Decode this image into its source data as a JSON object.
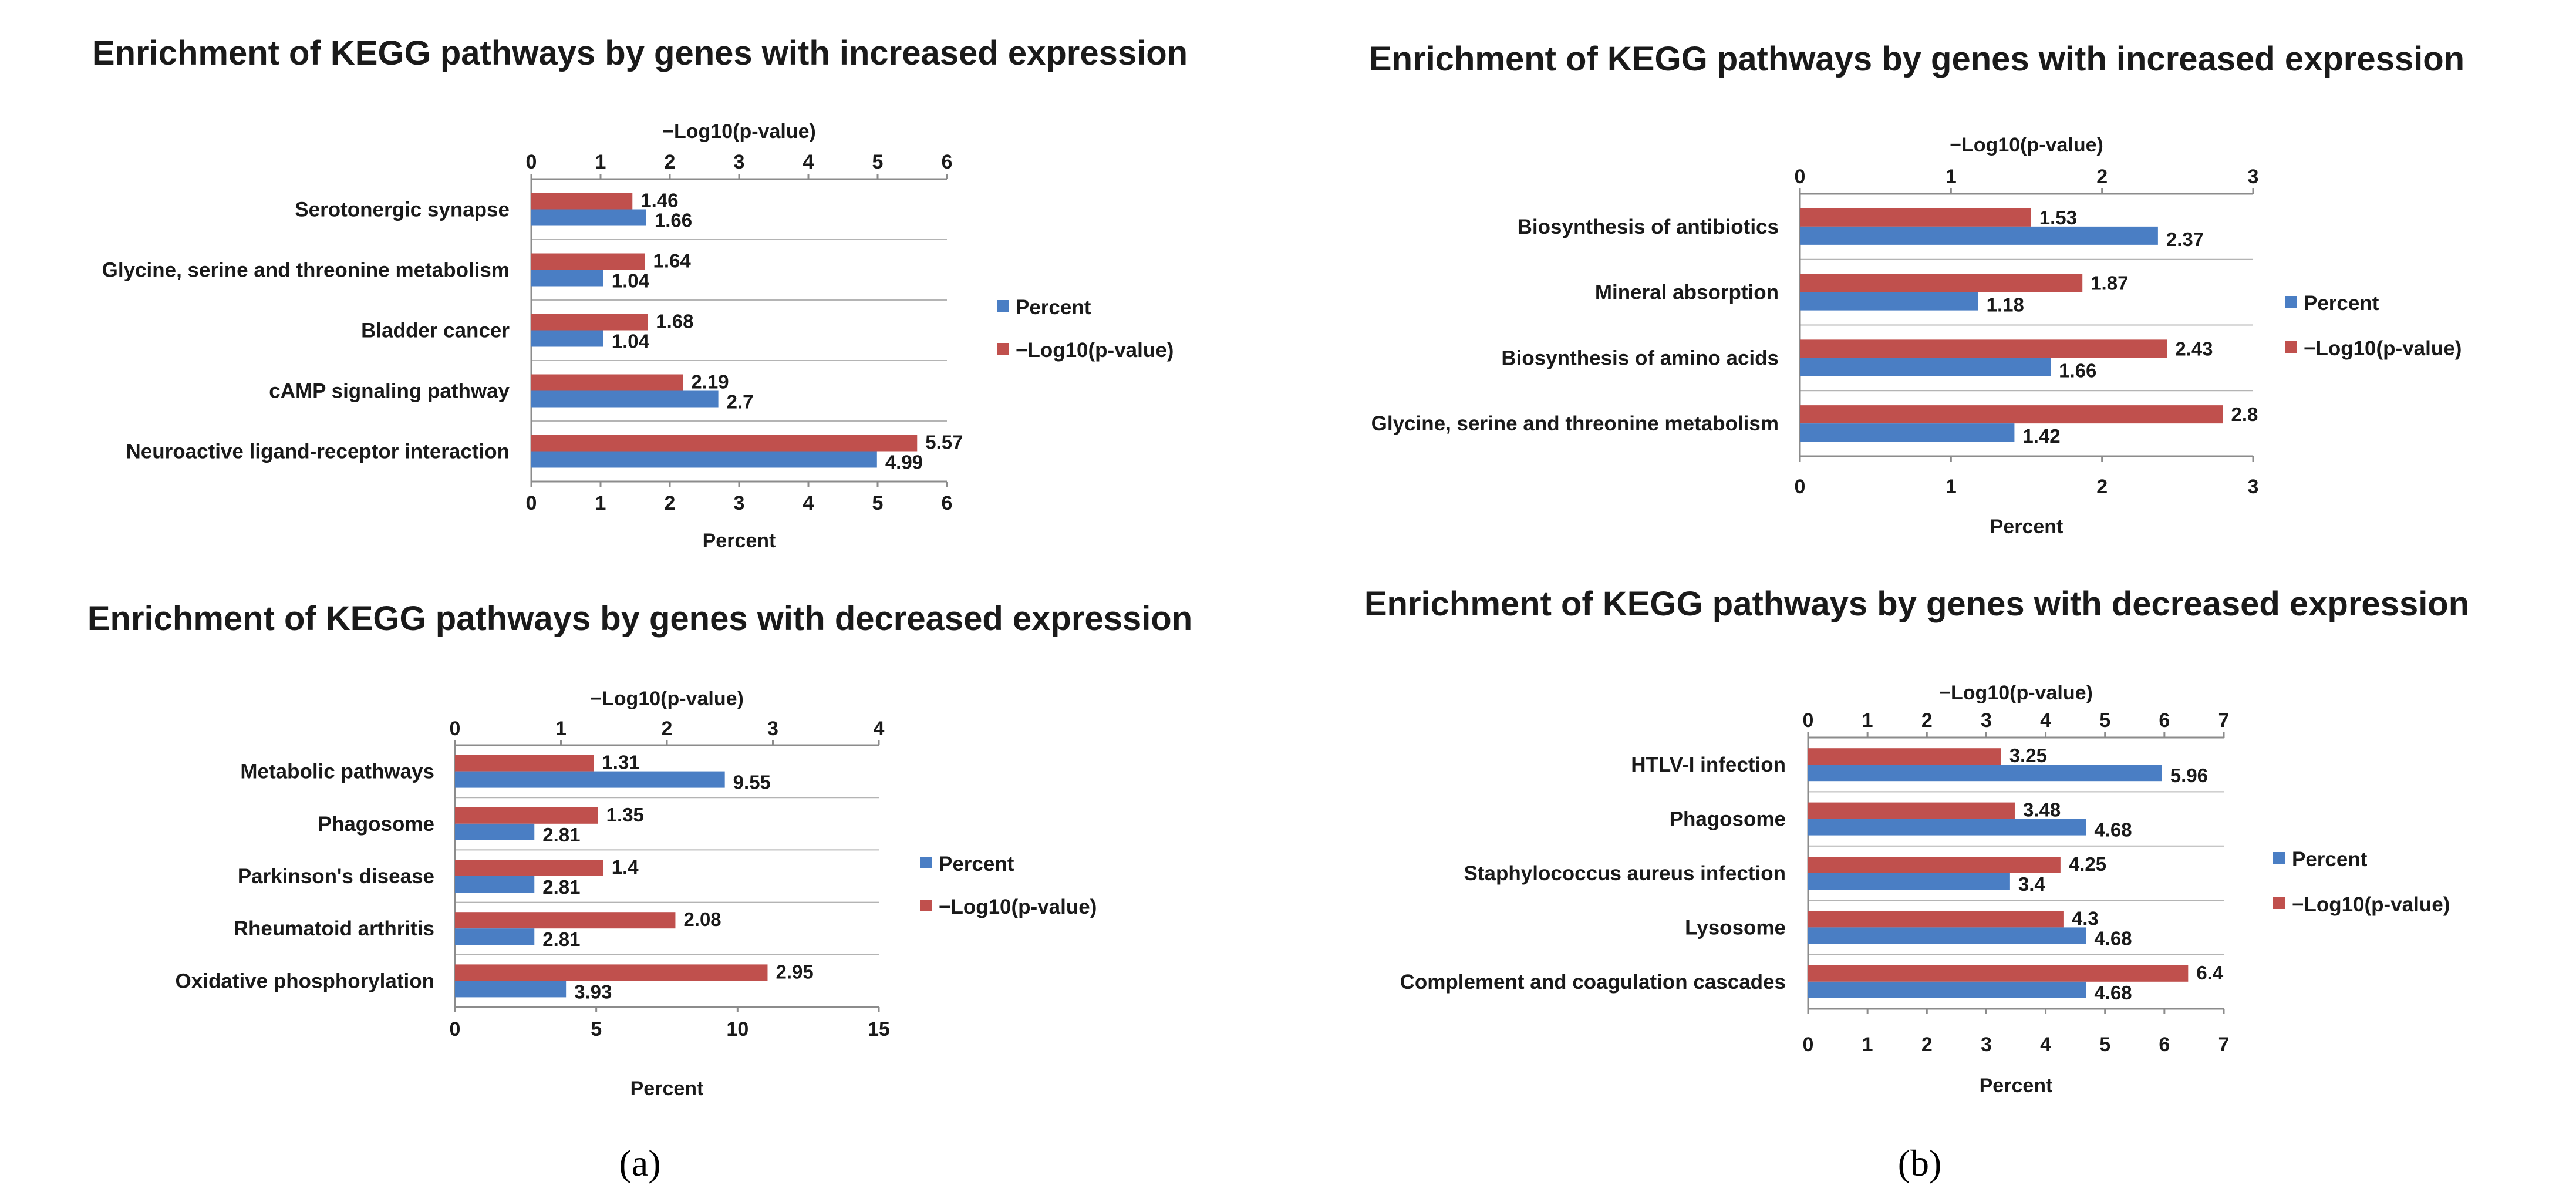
{
  "colors": {
    "percent": "#4a7ec4",
    "log": "#c0504d",
    "axis": "#8c8c8c",
    "grid": "#b4b4b4"
  },
  "panel_labels": [
    "(a)",
    "(b)"
  ],
  "chart_data": [
    {
      "type": "bar",
      "title": "Enrichment of KEGG pathways by genes with increased expression",
      "panel": "(a)",
      "categories": [
        "Serotonergic synapse",
        "Glycine, serine and threonine metabolism",
        "Bladder cancer",
        "cAMP signaling pathway",
        "Neuroactive ligand-receptor interaction"
      ],
      "series": [
        {
          "name": "−Log10(p-value)",
          "axis": "top",
          "values": [
            1.46,
            1.64,
            1.68,
            2.19,
            5.57
          ]
        },
        {
          "name": "Percent",
          "axis": "bottom",
          "values": [
            1.66,
            1.04,
            1.04,
            2.7,
            4.99
          ]
        }
      ],
      "top_axis": {
        "label": "−Log10(p-value)",
        "range": [
          0,
          6
        ],
        "ticks": [
          0,
          1,
          2,
          3,
          4,
          5,
          6
        ]
      },
      "bottom_axis": {
        "label": "Percent",
        "range": [
          0,
          6
        ],
        "ticks": [
          0,
          1,
          2,
          3,
          4,
          5,
          6
        ]
      },
      "legend": [
        "Percent",
        "−Log10(p-value)"
      ],
      "legend_position": "right"
    },
    {
      "type": "bar",
      "title": "Enrichment of KEGG pathways by genes with decreased expression",
      "panel": "(a)",
      "categories": [
        "Metabolic pathways",
        "Phagosome",
        "Parkinson's disease",
        "Rheumatoid arthritis",
        "Oxidative phosphorylation"
      ],
      "series": [
        {
          "name": "−Log10(p-value)",
          "axis": "top",
          "values": [
            1.31,
            1.35,
            1.4,
            2.08,
            2.95
          ]
        },
        {
          "name": "Percent",
          "axis": "bottom",
          "values": [
            9.55,
            2.81,
            2.81,
            2.81,
            3.93
          ]
        }
      ],
      "top_axis": {
        "label": "−Log10(p-value)",
        "range": [
          0,
          4
        ],
        "ticks": [
          0,
          1,
          2,
          3,
          4
        ]
      },
      "bottom_axis": {
        "label": "Percent",
        "range": [
          0,
          15
        ],
        "ticks": [
          0,
          5,
          10,
          15
        ]
      },
      "legend": [
        "Percent",
        "−Log10(p-value)"
      ],
      "legend_position": "right"
    },
    {
      "type": "bar",
      "title": "Enrichment of KEGG pathways by genes with increased expression",
      "panel": "(b)",
      "categories": [
        "Biosynthesis of antibiotics",
        "Mineral absorption",
        "Biosynthesis of amino acids",
        "Glycine, serine and threonine metabolism"
      ],
      "series": [
        {
          "name": "−Log10(p-value)",
          "axis": "top",
          "values": [
            1.53,
            1.87,
            2.43,
            2.8
          ]
        },
        {
          "name": "Percent",
          "axis": "bottom",
          "values": [
            2.37,
            1.18,
            1.66,
            1.42
          ]
        }
      ],
      "top_axis": {
        "label": "−Log10(p-value)",
        "range": [
          0,
          3
        ],
        "ticks": [
          0,
          1,
          2,
          3
        ]
      },
      "bottom_axis": {
        "label": "Percent",
        "range": [
          0,
          3
        ],
        "ticks": [
          0,
          1,
          2,
          3
        ]
      },
      "legend": [
        "Percent",
        "−Log10(p-value)"
      ],
      "legend_position": "right"
    },
    {
      "type": "bar",
      "title": "Enrichment of KEGG pathways by genes with decreased expression",
      "panel": "(b)",
      "categories": [
        "HTLV-I infection",
        "Phagosome",
        "Staphylococcus aureus infection",
        "Lysosome",
        "Complement and coagulation cascades"
      ],
      "series": [
        {
          "name": "−Log10(p-value)",
          "axis": "top",
          "values": [
            3.25,
            3.48,
            4.25,
            4.3,
            6.4
          ]
        },
        {
          "name": "Percent",
          "axis": "bottom",
          "values": [
            5.96,
            4.68,
            3.4,
            4.68,
            4.68
          ]
        }
      ],
      "top_axis": {
        "label": "−Log10(p-value)",
        "range": [
          0,
          7
        ],
        "ticks": [
          0,
          1,
          2,
          3,
          4,
          5,
          6,
          7
        ]
      },
      "bottom_axis": {
        "label": "Percent",
        "range": [
          0,
          7
        ],
        "ticks": [
          0,
          1,
          2,
          3,
          4,
          5,
          6,
          7
        ]
      },
      "legend": [
        "Percent",
        "−Log10(p-value)"
      ],
      "legend_position": "right"
    }
  ]
}
